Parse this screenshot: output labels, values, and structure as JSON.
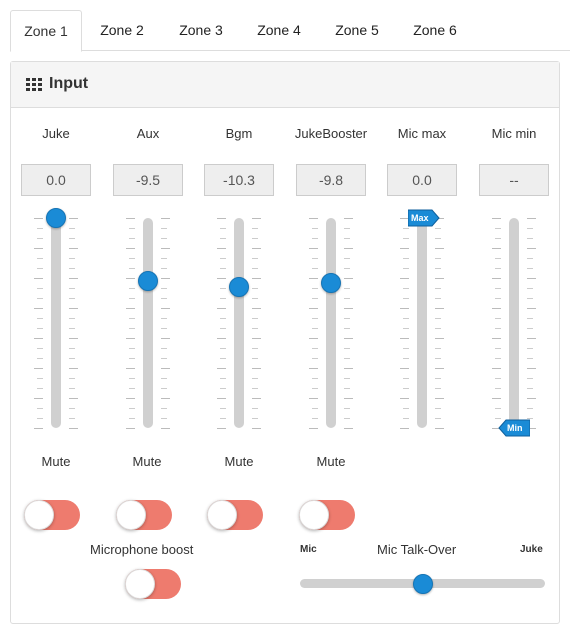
{
  "tabs": [
    "Zone 1",
    "Zone 2",
    "Zone 3",
    "Zone 4",
    "Zone 5",
    "Zone 6"
  ],
  "active_tab": 0,
  "panel": {
    "title": "Input",
    "icon": "grid-icon"
  },
  "channels": [
    {
      "label": "Juke",
      "value": "0.0",
      "level": 1.0
    },
    {
      "label": "Aux",
      "value": "-9.5",
      "level": 0.7
    },
    {
      "label": "Bgm",
      "value": "-10.3",
      "level": 0.67
    },
    {
      "label": "JukeBooster",
      "value": "-9.8",
      "level": 0.69
    }
  ],
  "mic_max": {
    "label": "Mic max",
    "value": "0.0",
    "flag": "Max",
    "level": 1.0
  },
  "mic_min": {
    "label": "Mic min",
    "value": "--",
    "flag": "Min",
    "level": 0.0
  },
  "mute_label": "Mute",
  "mutes": [
    false,
    false,
    false,
    false
  ],
  "microphone_boost": {
    "label": "Microphone boost",
    "on": false
  },
  "talkover": {
    "label": "Mic Talk-Over",
    "left": "Mic",
    "right": "Juke",
    "position": 0.5
  },
  "colors": {
    "knob": "#1a8bd6",
    "toggle": "#ee7b6e",
    "track": "#d0d0d0"
  }
}
